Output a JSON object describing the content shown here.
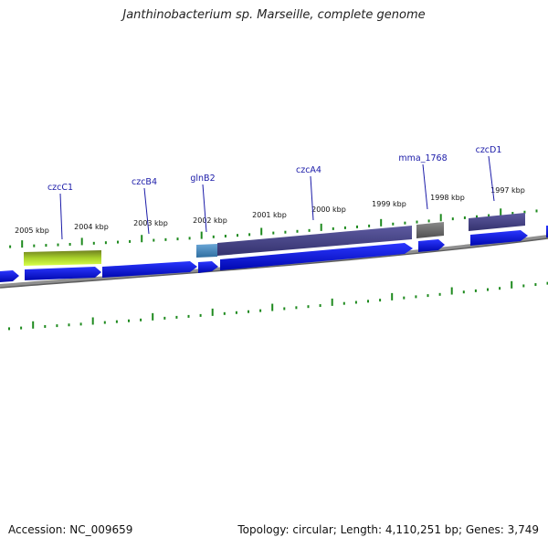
{
  "title": "Janthinobacterium sp. Marseille, complete genome",
  "accession": "Accession: NC_009659",
  "stats": "Topology: circular; Length: 4,110,251 bp; Genes: 3,749",
  "colors": {
    "backbone": "#7a7a7a",
    "tick": "#1e8a1e",
    "gene_blue": "#0a14e6",
    "gene_label": "#1a1aa8",
    "purple": "#4a4890",
    "gray": "#6e6e6e",
    "green": "#8fbf1f",
    "teal": "#4a8ac0"
  },
  "kbp_labels": [
    "2005 kbp",
    "2004 kbp",
    "2003 kbp",
    "2002 kbp",
    "2001 kbp",
    "2000 kbp",
    "1999 kbp",
    "1998 kbp",
    "1997 kbp"
  ],
  "gene_labels": [
    "czcC1",
    "czcB4",
    "glnB2",
    "czcA4",
    "mma_1768",
    "czcD1"
  ]
}
